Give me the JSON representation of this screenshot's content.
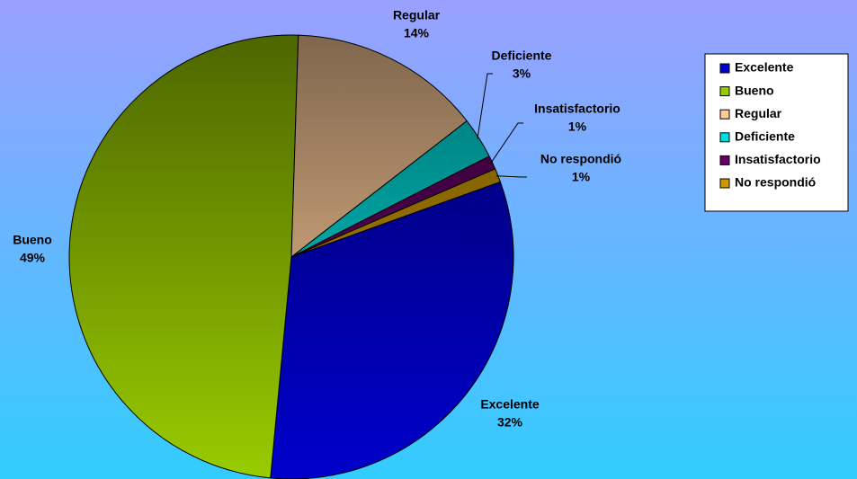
{
  "chart_data": {
    "type": "pie",
    "categories": [
      "Excelente",
      "Bueno",
      "Regular",
      "Deficiente",
      "Insatisfactorio",
      "No respondió"
    ],
    "values": [
      32,
      49,
      14,
      3,
      1,
      1
    ],
    "value_labels": [
      "32%",
      "49%",
      "14%",
      "3%",
      "1%",
      "1%"
    ],
    "colors": [
      "#0000cc",
      "#99cc00",
      "#ffcc99",
      "#00dddd",
      "#660066",
      "#cc9900"
    ],
    "legend": "right"
  }
}
